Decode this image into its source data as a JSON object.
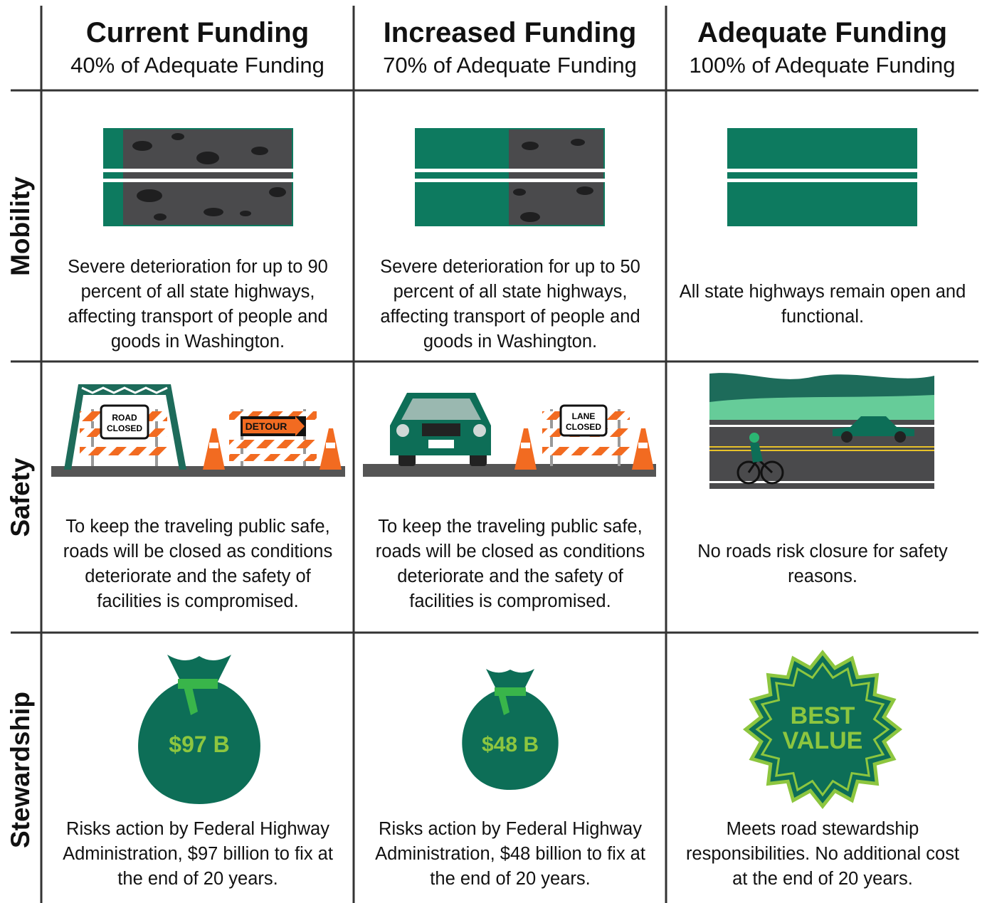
{
  "header": {
    "columns": [
      {
        "title": "Current Funding",
        "subtitle": "40% of Adequate Funding"
      },
      {
        "title": "Increased Funding",
        "subtitle": "70% of Adequate Funding"
      },
      {
        "title": "Adequate Funding",
        "subtitle": "100% of Adequate Funding"
      }
    ]
  },
  "rows": [
    {
      "label": "Mobility",
      "cells": [
        "Severe deterioration for up to 90 percent of all state highways, affecting transport of people and goods in Washington.",
        "Severe deterioration for up to 50 percent of all state highways, affecting transport of people and goods in Washington.",
        "All state highways remain open and functional."
      ]
    },
    {
      "label": "Safety",
      "cells": [
        "To keep the traveling public safe, roads will be closed as conditions deteriorate and the safety of facilities is compromised.",
        "To keep the traveling public safe, roads will be closed as conditions deteriorate and the safety of facilities is compromised.",
        "No roads risk closure for safety reasons."
      ]
    },
    {
      "label": "Stewardship",
      "cells": [
        "Risks action by Federal Highway Administration, $97 billion to fix at the end of 20 years.",
        "Risks action by Federal Highway Administration, $48 billion to fix at the end of 20 years.",
        "Meets road stewardship responsibilities. No additional cost at the end of 20 years."
      ]
    }
  ],
  "illustrations": {
    "road_closed_sign": [
      "ROAD",
      "CLOSED"
    ],
    "detour_sign": "DETOUR",
    "lane_closed_sign": [
      "LANE",
      "CLOSED"
    ],
    "bag_current": "$97 B",
    "bag_increased": "$48 B",
    "badge": [
      "BEST",
      "VALUE"
    ]
  }
}
